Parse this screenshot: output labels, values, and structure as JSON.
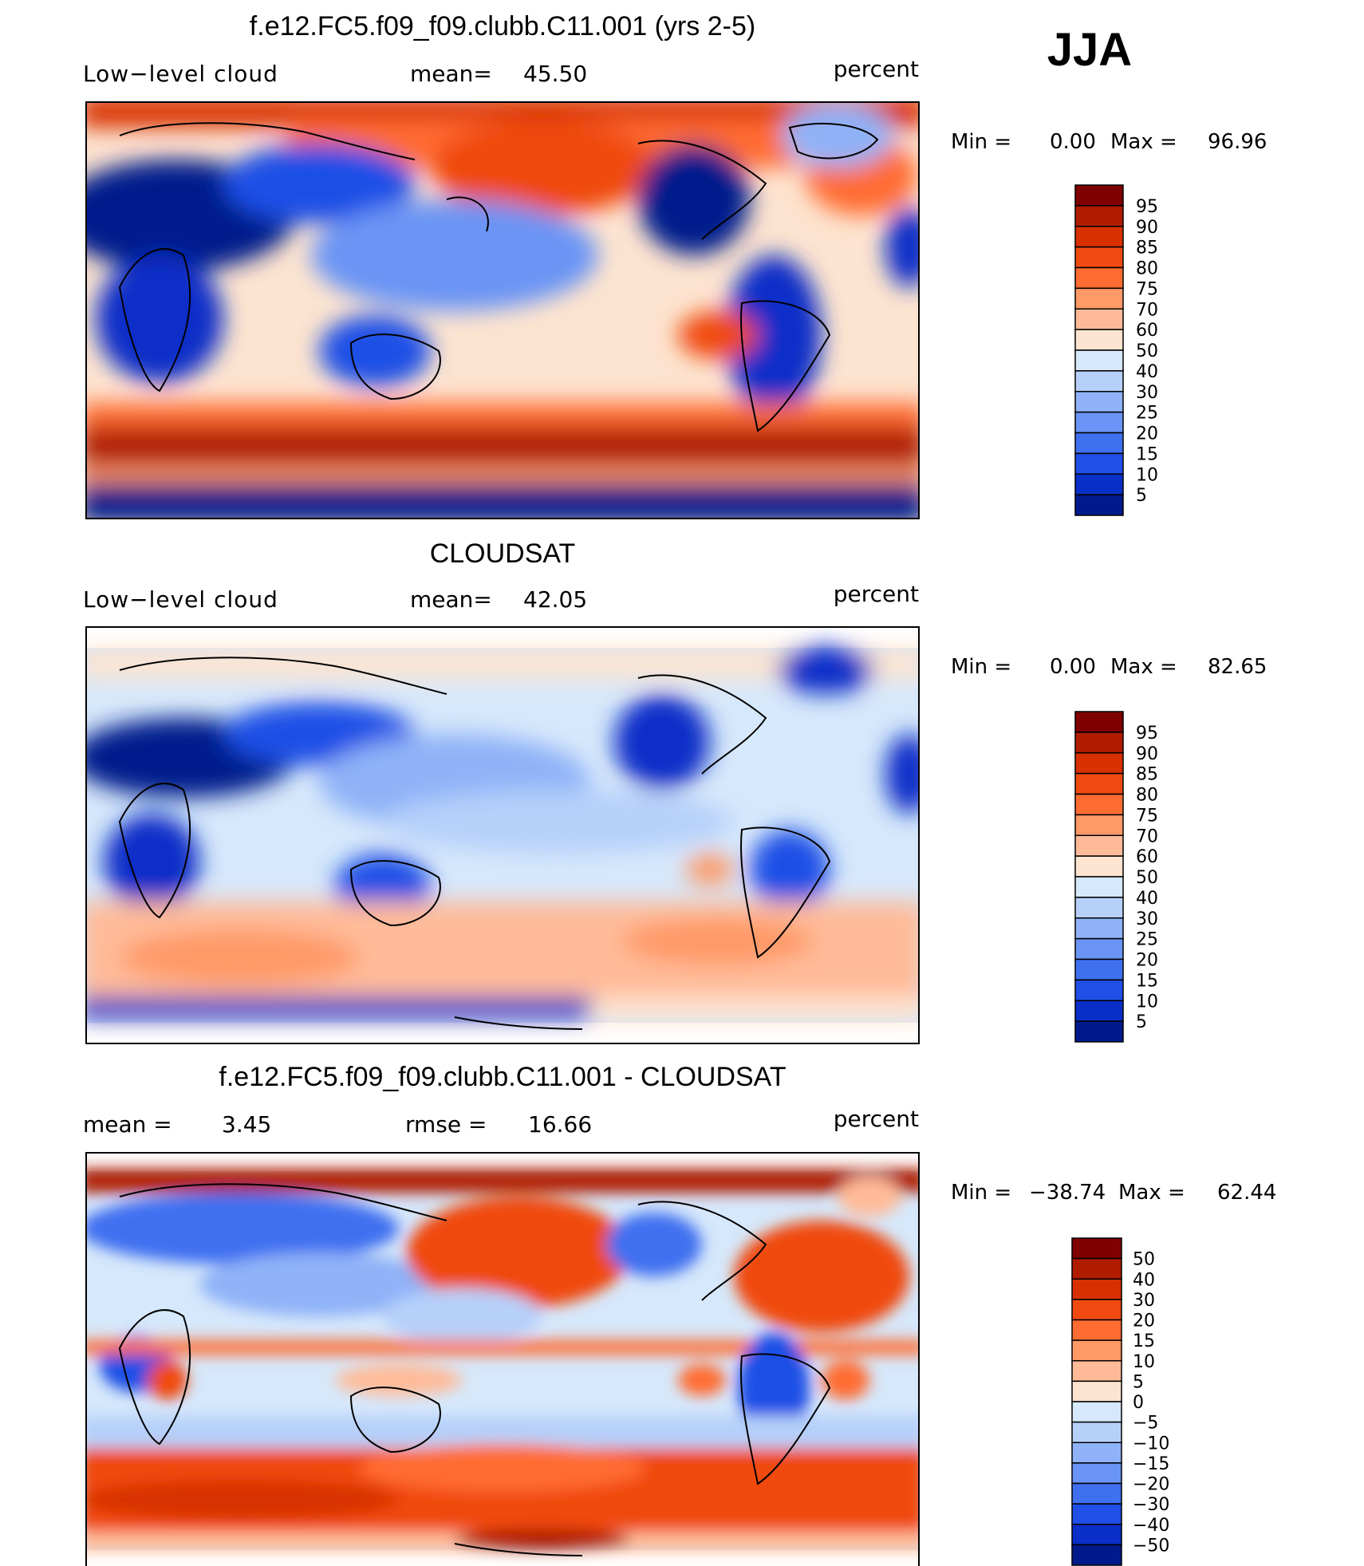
{
  "season": "JJA",
  "panels": [
    {
      "id": "model",
      "title": "f.e12.FC5.f09_f09.clubb.C11.001 (yrs 2-5)",
      "left_label": "Low−level cloud",
      "stat_label": "mean=",
      "stat_value": "45.50",
      "units": "percent",
      "min_label": "Min",
      "min_value": "0.00",
      "max_label": "Max",
      "max_value": "96.96"
    },
    {
      "id": "obs",
      "title": "CLOUDSAT",
      "left_label": "Low−level cloud",
      "stat_label": "mean=",
      "stat_value": "42.05",
      "units": "percent",
      "min_label": "Min",
      "min_value": "0.00",
      "max_label": "Max",
      "max_value": "82.65"
    },
    {
      "id": "diff",
      "title": "f.e12.FC5.f09_f09.clubb.C11.001 - CLOUDSAT",
      "left_label": "mean =",
      "left_value": "3.45",
      "stat_label": "rmse =",
      "stat_value": "16.66",
      "units": "percent",
      "min_label": "Min",
      "min_value": "−38.74",
      "max_label": "Max",
      "max_value": "62.44"
    }
  ],
  "colorbars": {
    "cloud": {
      "labels": [
        "95",
        "90",
        "85",
        "80",
        "75",
        "70",
        "60",
        "50",
        "40",
        "30",
        "25",
        "20",
        "15",
        "10",
        "5"
      ],
      "colors": [
        "#7f0000",
        "#b01c00",
        "#d83000",
        "#f04a10",
        "#ff6c32",
        "#ff9966",
        "#ffbb99",
        "#fde4d0",
        "#d6e8fb",
        "#b6d0fa",
        "#8fb2f8",
        "#6a94f5",
        "#3f70f0",
        "#1f4fe6",
        "#0a2fc8",
        "#001a8c"
      ]
    },
    "diff": {
      "labels": [
        "50",
        "40",
        "30",
        "20",
        "15",
        "10",
        "5",
        "0",
        "−5",
        "−10",
        "−15",
        "−20",
        "−30",
        "−40",
        "−50"
      ],
      "colors": [
        "#7f0000",
        "#b01c00",
        "#d83000",
        "#f04a10",
        "#ff6c32",
        "#ff9966",
        "#ffbb99",
        "#fde4d0",
        "#d6e8fb",
        "#b6d0fa",
        "#8fb2f8",
        "#6a94f5",
        "#3f70f0",
        "#1f4fe6",
        "#0a2fc8",
        "#001a8c"
      ]
    }
  },
  "chart_data": [
    {
      "type": "heatmap",
      "title": "f.e12.FC5.f09_f09.clubb.C11.001 (yrs 2-5)",
      "variable": "Low−level cloud",
      "units": "percent",
      "mean": 45.5,
      "min": 0.0,
      "max": 96.96,
      "levels": [
        5,
        10,
        15,
        20,
        25,
        30,
        40,
        50,
        60,
        70,
        75,
        80,
        85,
        90,
        95
      ]
    },
    {
      "type": "heatmap",
      "title": "CLOUDSAT",
      "variable": "Low−level cloud",
      "units": "percent",
      "mean": 42.05,
      "min": 0.0,
      "max": 82.65,
      "levels": [
        5,
        10,
        15,
        20,
        25,
        30,
        40,
        50,
        60,
        70,
        75,
        80,
        85,
        90,
        95
      ]
    },
    {
      "type": "heatmap",
      "title": "f.e12.FC5.f09_f09.clubb.C11.001 - CLOUDSAT",
      "units": "percent",
      "mean": 3.45,
      "rmse": 16.66,
      "min": -38.74,
      "max": 62.44,
      "levels": [
        -50,
        -40,
        -30,
        -20,
        -15,
        -10,
        -5,
        0,
        5,
        10,
        15,
        20,
        30,
        40,
        50
      ]
    }
  ]
}
